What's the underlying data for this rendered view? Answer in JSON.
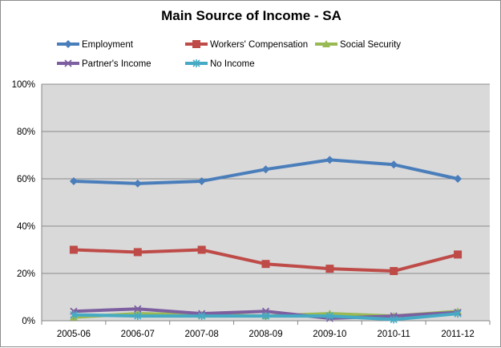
{
  "chart_data": {
    "type": "line",
    "title": "Main Source of Income - SA",
    "xlabel": "",
    "ylabel": "",
    "categories": [
      "2005-06",
      "2006-07",
      "2007-08",
      "2008-09",
      "2009-10",
      "2010-11",
      "2011-12"
    ],
    "ylim": [
      0,
      100
    ],
    "yticks": [
      "0%",
      "20%",
      "40%",
      "60%",
      "80%",
      "100%"
    ],
    "grid": true,
    "legend_position": "top",
    "series": [
      {
        "name": "Employment",
        "color": "#4a7ebb",
        "marker": "diamond",
        "values": [
          59,
          58,
          59,
          64,
          68,
          66,
          60
        ]
      },
      {
        "name": "Workers' Compensation",
        "color": "#be4b48",
        "marker": "square",
        "values": [
          30,
          29,
          30,
          24,
          22,
          21,
          28
        ]
      },
      {
        "name": "Social Security",
        "color": "#98b954",
        "marker": "triangle",
        "values": [
          1.5,
          3,
          2.5,
          2,
          3,
          2,
          4
        ]
      },
      {
        "name": "Partner's Income",
        "color": "#7d5fa0",
        "marker": "x",
        "values": [
          4,
          5,
          3,
          4,
          1,
          2,
          3.5
        ]
      },
      {
        "name": "No Income",
        "color": "#46aac5",
        "marker": "star",
        "values": [
          2.5,
          2,
          2,
          2,
          2,
          0.5,
          3
        ]
      }
    ]
  }
}
